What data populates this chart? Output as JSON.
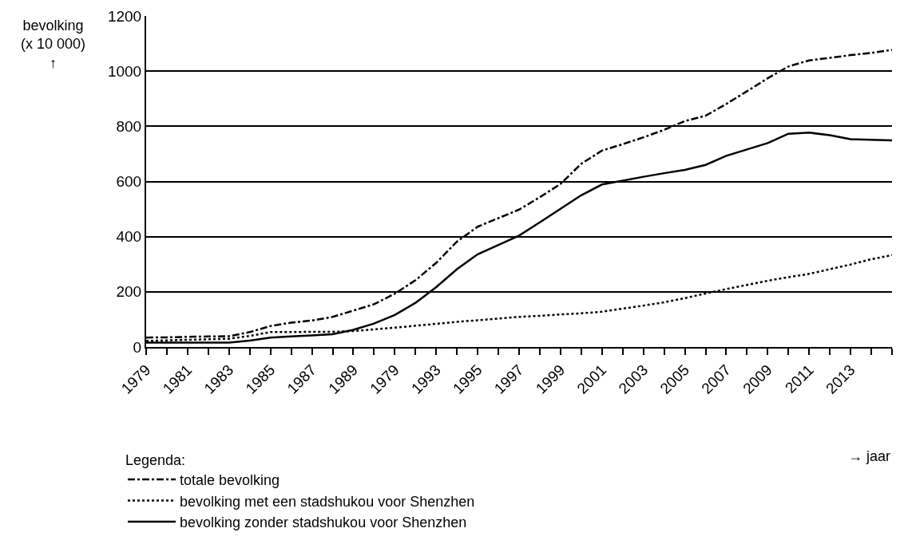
{
  "chart_data": {
    "type": "line",
    "ylabel": "bevolking\n(x 10 000)\n↑",
    "xlabel": "→ jaar",
    "legend_title": "Legenda:",
    "legend": "bottom",
    "grid": "y",
    "categories": [
      "1979",
      null,
      "1981",
      null,
      "1983",
      null,
      "1985",
      null,
      "1987",
      null,
      "1989",
      null,
      "1979",
      null,
      "1993",
      null,
      "1995",
      null,
      "1997",
      null,
      "1999",
      null,
      "2001",
      null,
      "2003",
      null,
      "2005",
      null,
      "2007",
      null,
      "2009",
      null,
      "2011",
      null,
      "2013",
      null,
      null
    ],
    "ylim": [
      0,
      1200
    ],
    "yticks": [
      0,
      200,
      400,
      600,
      800,
      1000,
      1200
    ],
    "series": [
      {
        "name": "totale bevolking",
        "color": "#000000",
        "line_style": "dashdot",
        "values": [
          34,
          35,
          37,
          38,
          39,
          54,
          76,
          88,
          96,
          109,
          132,
          155,
          193,
          242,
          305,
          382,
          436,
          467,
          498,
          543,
          591,
          664,
          712,
          735,
          760,
          787,
          819,
          838,
          881,
          927,
          974,
          1017,
          1039,
          1048,
          1058,
          1066,
          1077
        ]
      },
      {
        "name": "bevolking met een stadshukou voor Shenzhen",
        "color": "#000000",
        "line_style": "dotted",
        "values": [
          22,
          24,
          26,
          28,
          30,
          40,
          54,
          54,
          55,
          55,
          58,
          64,
          70,
          77,
          84,
          91,
          97,
          103,
          109,
          113,
          118,
          122,
          128,
          139,
          150,
          162,
          177,
          194,
          210,
          225,
          240,
          253,
          265,
          282,
          299,
          318,
          333
        ]
      },
      {
        "name": "bevolking zonder stadshukou voor Shenzhen",
        "color": "#000000",
        "line_style": "solid",
        "values": [
          16,
          16,
          16,
          16,
          16,
          23,
          34,
          38,
          42,
          46,
          62,
          85,
          116,
          160,
          217,
          282,
          336,
          370,
          404,
          452,
          501,
          550,
          589,
          603,
          617,
          630,
          642,
          660,
          693,
          716,
          739,
          773,
          777,
          768,
          753,
          751,
          749
        ]
      }
    ]
  }
}
